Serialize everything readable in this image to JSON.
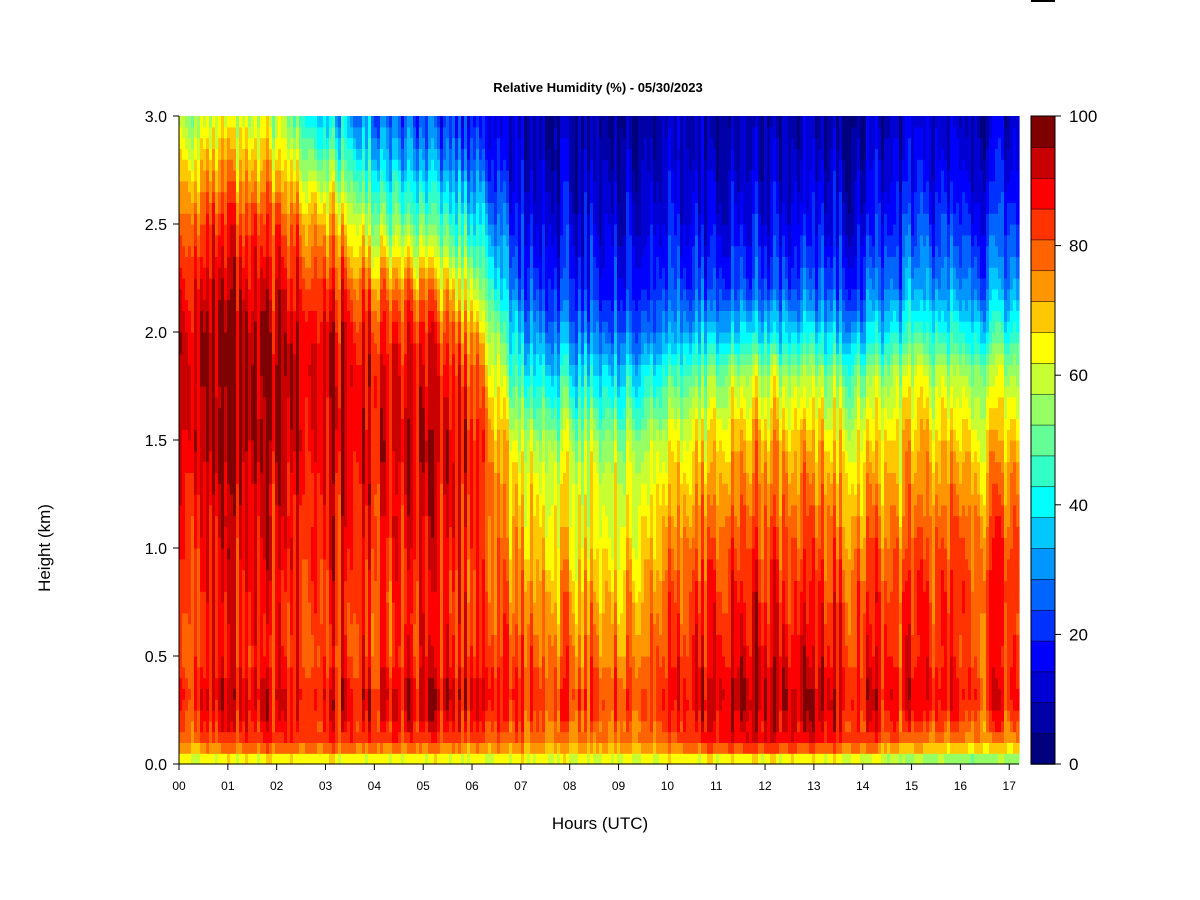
{
  "chart_data": {
    "type": "heatmap",
    "title": "Relative Humidity (%) - 05/30/2023",
    "xlabel": "Hours (UTC)",
    "ylabel": "Height (km)",
    "xlim": [
      0,
      17.2
    ],
    "ylim": [
      0,
      3.0
    ],
    "x_ticks": [
      "00",
      "01",
      "02",
      "03",
      "04",
      "05",
      "06",
      "07",
      "08",
      "09",
      "10",
      "11",
      "12",
      "13",
      "14",
      "15",
      "16",
      "17"
    ],
    "y_ticks": [
      "0.0",
      "0.5",
      "1.0",
      "1.5",
      "2.0",
      "2.5",
      "3.0"
    ],
    "colorbar": {
      "range": [
        0,
        100
      ],
      "step": 5,
      "tick_labels": [
        "0",
        "20",
        "40",
        "60",
        "80",
        "100"
      ],
      "colors": [
        "#00007f",
        "#0000a8",
        "#0000d4",
        "#0000ff",
        "#0032ff",
        "#0064ff",
        "#0096ff",
        "#00c8ff",
        "#00ffff",
        "#32ffc8",
        "#64ff96",
        "#96ff64",
        "#c8ff32",
        "#ffff00",
        "#ffc800",
        "#ff9600",
        "#ff6400",
        "#ff3200",
        "#ff0000",
        "#c80000",
        "#7f0000"
      ]
    },
    "grid": false,
    "legend": "colorbar-right",
    "hours": [
      0,
      1,
      2,
      3,
      4,
      5,
      6,
      7,
      8,
      9,
      10,
      11,
      12,
      13,
      14,
      15,
      16,
      17
    ],
    "profiles": {
      "heights_km": [
        0.0,
        0.1,
        0.3,
        0.5,
        0.8,
        1.0,
        1.3,
        1.5,
        1.8,
        2.0,
        2.2,
        2.5,
        2.8,
        3.0
      ],
      "rh": [
        [
          62,
          80,
          92,
          86,
          88,
          90,
          94,
          98,
          99,
          98,
          94,
          85,
          70,
          60
        ],
        [
          60,
          85,
          94,
          88,
          90,
          92,
          95,
          98,
          99,
          98,
          94,
          86,
          72,
          62
        ],
        [
          62,
          88,
          94,
          88,
          90,
          92,
          94,
          98,
          99,
          97,
          93,
          85,
          70,
          60
        ],
        [
          62,
          88,
          94,
          88,
          90,
          92,
          94,
          97,
          98,
          96,
          90,
          78,
          55,
          38
        ],
        [
          60,
          88,
          95,
          88,
          88,
          90,
          93,
          95,
          94,
          90,
          82,
          60,
          40,
          30
        ],
        [
          60,
          86,
          95,
          88,
          88,
          90,
          93,
          95,
          92,
          88,
          78,
          50,
          30,
          22
        ],
        [
          60,
          85,
          97,
          90,
          88,
          90,
          92,
          93,
          88,
          80,
          65,
          45,
          28,
          20
        ],
        [
          62,
          82,
          90,
          86,
          80,
          75,
          70,
          62,
          45,
          35,
          25,
          18,
          12,
          10
        ],
        [
          62,
          80,
          88,
          82,
          76,
          70,
          66,
          60,
          42,
          30,
          22,
          15,
          10,
          8
        ],
        [
          60,
          80,
          86,
          80,
          74,
          68,
          64,
          58,
          40,
          28,
          20,
          14,
          9,
          7
        ],
        [
          62,
          82,
          88,
          84,
          80,
          76,
          68,
          62,
          45,
          30,
          22,
          15,
          10,
          8
        ],
        [
          60,
          92,
          98,
          94,
          90,
          86,
          78,
          72,
          58,
          38,
          25,
          16,
          10,
          8
        ],
        [
          60,
          94,
          99,
          95,
          90,
          86,
          80,
          76,
          62,
          40,
          25,
          16,
          10,
          8
        ],
        [
          60,
          92,
          97,
          92,
          88,
          84,
          78,
          72,
          58,
          38,
          25,
          16,
          10,
          8
        ],
        [
          58,
          88,
          94,
          90,
          86,
          82,
          74,
          68,
          55,
          36,
          25,
          16,
          10,
          8
        ],
        [
          52,
          80,
          92,
          88,
          86,
          82,
          75,
          72,
          62,
          45,
          32,
          22,
          14,
          10
        ],
        [
          50,
          78,
          90,
          86,
          86,
          84,
          76,
          70,
          58,
          42,
          30,
          20,
          12,
          9
        ],
        [
          50,
          78,
          90,
          86,
          88,
          86,
          78,
          72,
          60,
          45,
          32,
          22,
          14,
          10
        ]
      ]
    }
  }
}
